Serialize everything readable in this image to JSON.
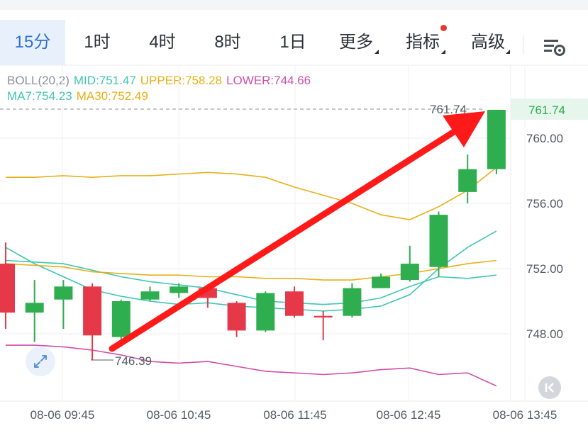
{
  "tabs": [
    {
      "label": "15分",
      "active": true
    },
    {
      "label": "1时"
    },
    {
      "label": "4时"
    },
    {
      "label": "8时"
    },
    {
      "label": "1日"
    },
    {
      "label": "更多",
      "dropdown": true
    },
    {
      "label": "指标",
      "dropdown": true,
      "badge": true
    },
    {
      "label": "高级",
      "dropdown": true
    }
  ],
  "settings_icon": "chart-settings-icon",
  "legend": {
    "boll": "BOLL(20,2)",
    "mid": "MID:751.47",
    "upper": "UPPER:758.28",
    "lower": "LOWER:744.66",
    "ma7": "MA7:754.23",
    "ma30": "MA30:752.49"
  },
  "colors": {
    "up": "#2fae4f",
    "down": "#e53949",
    "mid": "#3fc6b2",
    "upper": "#e8b019",
    "lower": "#d04fa8",
    "ma7": "#3fc6b2",
    "ma30": "#e8b019",
    "annotation_arrow": "#ff1a1a",
    "accent": "#2e72d2"
  },
  "price_labels": {
    "current": "761.74",
    "high_marker": "761.74",
    "low_marker": "746.39"
  },
  "chart_data": {
    "type": "candlestick",
    "interval": "15分",
    "y_ticks": [
      "760.00",
      "756.00",
      "752.00",
      "748.00"
    ],
    "x_ticks": [
      "08-06 09:45",
      "08-06 10:45",
      "08-06 11:45",
      "08-06 12:45",
      "08-06 13:45"
    ],
    "ylim": [
      744.0,
      762.0
    ],
    "candles": [
      {
        "o": 752.3,
        "c": 749.3,
        "h": 753.6,
        "l": 748.3
      },
      {
        "o": 749.3,
        "c": 749.9,
        "h": 751.3,
        "l": 747.5
      },
      {
        "o": 750.1,
        "c": 750.9,
        "h": 751.3,
        "l": 748.3
      },
      {
        "o": 750.9,
        "c": 747.9,
        "h": 751.1,
        "l": 746.4
      },
      {
        "o": 747.8,
        "c": 750.0,
        "h": 750.1,
        "l": 747.2
      },
      {
        "o": 750.1,
        "c": 750.6,
        "h": 750.9,
        "l": 750.0
      },
      {
        "o": 750.5,
        "c": 750.9,
        "h": 751.1,
        "l": 750.2
      },
      {
        "o": 750.8,
        "c": 750.2,
        "h": 751.0,
        "l": 749.6
      },
      {
        "o": 749.9,
        "c": 748.2,
        "h": 750.0,
        "l": 747.8
      },
      {
        "o": 748.2,
        "c": 750.5,
        "h": 750.6,
        "l": 748.1
      },
      {
        "o": 750.6,
        "c": 749.1,
        "h": 750.9,
        "l": 749.0
      },
      {
        "o": 749.1,
        "c": 749.0,
        "h": 749.4,
        "l": 747.6
      },
      {
        "o": 749.1,
        "c": 750.8,
        "h": 751.1,
        "l": 749.0
      },
      {
        "o": 750.8,
        "c": 751.5,
        "h": 751.7,
        "l": 750.8
      },
      {
        "o": 751.3,
        "c": 752.3,
        "h": 753.4,
        "l": 751.2
      },
      {
        "o": 752.1,
        "c": 755.3,
        "h": 755.5,
        "l": 751.5
      },
      {
        "o": 756.7,
        "c": 758.1,
        "h": 759.0,
        "l": 756.0
      },
      {
        "o": 758.1,
        "c": 761.74,
        "h": 761.74,
        "l": 757.8
      }
    ],
    "series": [
      {
        "name": "MID",
        "values": [
          752.5,
          752.4,
          752.3,
          751.9,
          751.5,
          751.2,
          751.0,
          750.8,
          750.4,
          750.0,
          749.9,
          749.8,
          749.9,
          750.2,
          750.9,
          751.5,
          751.4,
          751.6
        ]
      },
      {
        "name": "UPPER",
        "values": [
          757.6,
          757.6,
          757.7,
          757.6,
          757.7,
          757.7,
          757.8,
          757.9,
          757.8,
          757.6,
          757.0,
          756.5,
          756.0,
          755.3,
          755.0,
          755.8,
          756.8,
          758.2
        ]
      },
      {
        "name": "LOWER",
        "values": [
          747.3,
          747.3,
          747.2,
          747.0,
          746.7,
          746.3,
          746.2,
          746.3,
          746.0,
          745.7,
          745.6,
          745.5,
          745.6,
          745.8,
          745.9,
          745.5,
          745.6,
          744.8
        ]
      },
      {
        "name": "MA7",
        "values": [
          753.3,
          752.3,
          751.5,
          750.7,
          750.3,
          750.0,
          749.8,
          749.9,
          749.7,
          749.6,
          749.5,
          749.4,
          749.5,
          749.7,
          750.4,
          752.0,
          753.3,
          754.3
        ]
      },
      {
        "name": "MA30",
        "values": [
          752.3,
          752.2,
          752.1,
          751.8,
          751.7,
          751.6,
          751.6,
          751.5,
          751.5,
          751.4,
          751.4,
          751.3,
          751.3,
          751.5,
          751.7,
          752.0,
          752.3,
          752.5
        ]
      }
    ],
    "annotation": "red arrow from the low marker up to the latest candle",
    "grid": true
  }
}
